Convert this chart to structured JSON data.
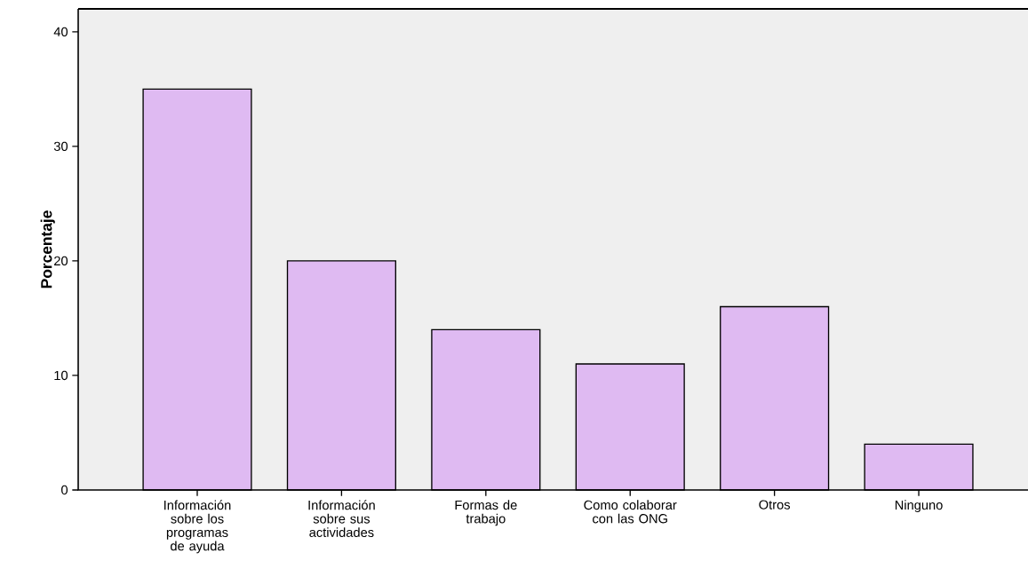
{
  "chart_data": {
    "type": "bar",
    "ylabel": "Porcentaje",
    "categories": [
      "Información sobre los programas de ayuda",
      "Información sobre sus actividades",
      "Formas de trabajo",
      "Como colaborar con las ONG",
      "Otros",
      "Ninguno"
    ],
    "values": [
      35,
      20,
      14,
      11,
      16,
      4
    ],
    "color": "#dfbaf2",
    "ylim": [
      0,
      42
    ],
    "yticks": [
      0,
      10,
      20,
      30,
      40
    ],
    "grid": false
  }
}
